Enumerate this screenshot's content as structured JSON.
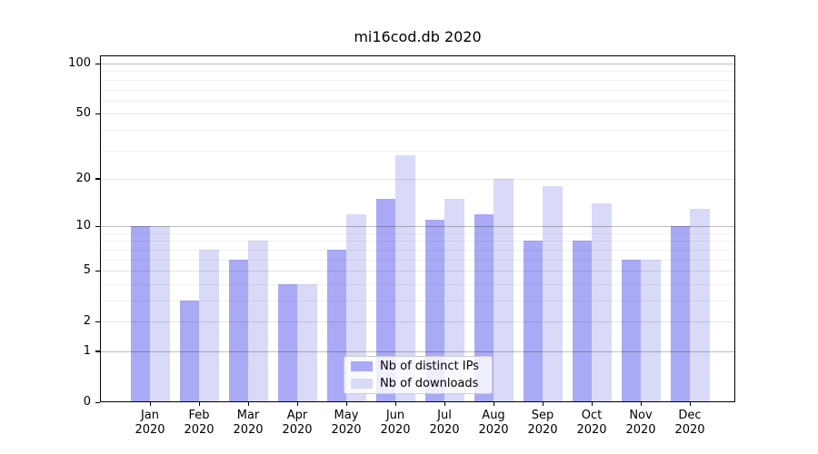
{
  "chart_data": {
    "type": "bar",
    "title": "mi16cod.db 2020",
    "months": [
      "Jan",
      "Feb",
      "Mar",
      "Apr",
      "May",
      "Jun",
      "Jul",
      "Aug",
      "Sep",
      "Oct",
      "Nov",
      "Dec"
    ],
    "year": "2020",
    "series": [
      {
        "name": "Nb of distinct IPs",
        "color": "#a9a9f5",
        "values": [
          10,
          3,
          6,
          4,
          7,
          15,
          11,
          12,
          8,
          8,
          6,
          10
        ]
      },
      {
        "name": "Nb of downloads",
        "color": "#d9d9f8",
        "values": [
          10,
          7,
          8,
          4,
          12,
          28,
          15,
          20,
          18,
          14,
          6,
          13
        ]
      }
    ],
    "yscale": "log1p",
    "ylim": [
      0,
      112
    ],
    "yticks": [
      0,
      1,
      2,
      5,
      10,
      20,
      50,
      100
    ],
    "yticks_emphasis": [
      1,
      10,
      100
    ],
    "yminor": [
      3,
      4,
      6,
      7,
      8,
      9,
      30,
      40,
      60,
      70,
      80,
      90
    ],
    "xlabel": "",
    "ylabel": "",
    "grid": true,
    "legend_position": "inside lower center-right",
    "colors": {
      "background": "#ffffff",
      "axis": "#000000",
      "grid_major": "#bdbdbd",
      "grid_minor": "#f0f0f0"
    }
  }
}
